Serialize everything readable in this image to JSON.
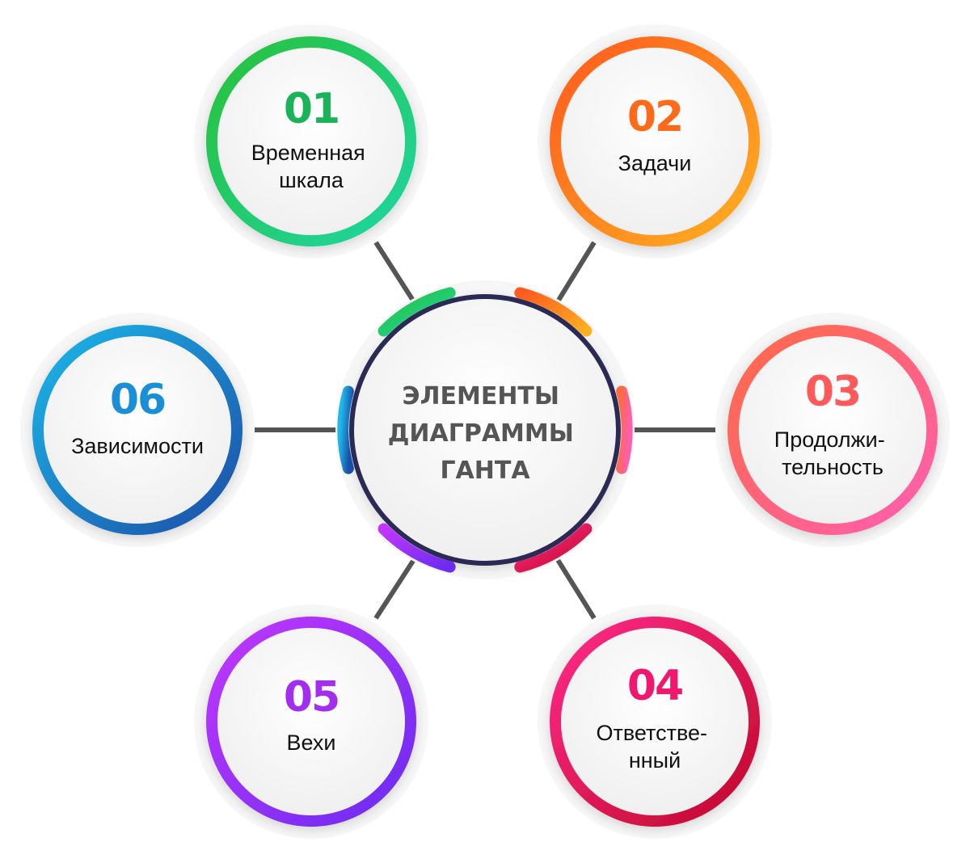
{
  "center": {
    "lines": [
      "ЭЛЕМЕНТЫ",
      "ДИАГРАММЫ",
      "ГАНТА"
    ],
    "text_color": "#555555",
    "ring_color": "#2a2a55"
  },
  "items": [
    {
      "number": "01",
      "lines": [
        "Временная",
        "шкала"
      ],
      "gradient": [
        "#27c13a",
        "#1ed6a3"
      ],
      "number_color": "#1ab35a"
    },
    {
      "number": "02",
      "lines": [
        "Задачи"
      ],
      "gradient": [
        "#ff5a1f",
        "#ffb020"
      ],
      "number_color": "#ff6a1a"
    },
    {
      "number": "03",
      "lines": [
        "Продолжи-",
        "тельность"
      ],
      "gradient": [
        "#ff6a45",
        "#ff5fb0"
      ],
      "number_color": "#ff5a5a"
    },
    {
      "number": "04",
      "lines": [
        "Ответстве-",
        "нный"
      ],
      "gradient": [
        "#ff2a8a",
        "#c00a2a"
      ],
      "number_color": "#f0186e"
    },
    {
      "number": "05",
      "lines": [
        "Вехи"
      ],
      "gradient": [
        "#c236ff",
        "#6a2cf0"
      ],
      "number_color": "#a22ef0"
    },
    {
      "number": "06",
      "lines": [
        "Зависимости"
      ],
      "gradient": [
        "#1fb6e8",
        "#1a4fa8"
      ],
      "number_color": "#1a8fd6"
    }
  ]
}
